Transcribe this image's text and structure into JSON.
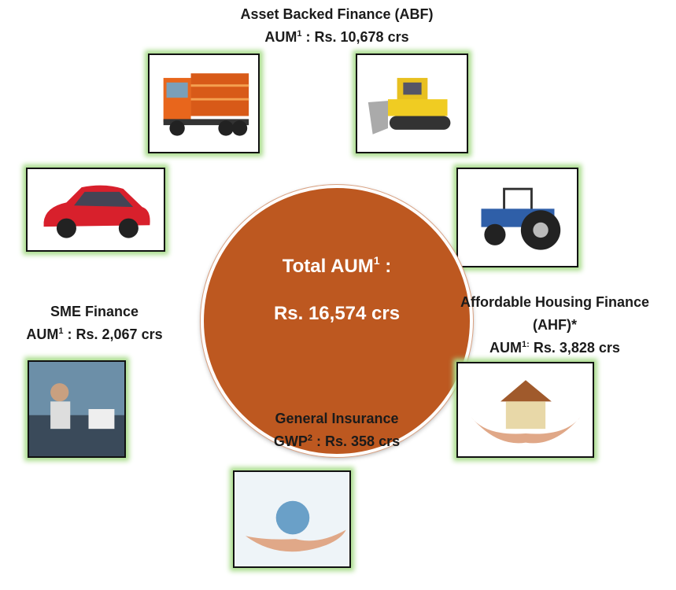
{
  "center": {
    "label": "Total AUM",
    "sup": "1",
    "after": " :",
    "value": "Rs. 16,574 crs"
  },
  "segments": [
    {
      "title": [
        "Asset Backed Finance (ABF)"
      ],
      "metric": "AUM",
      "sup": "1",
      "value": " : Rs. 10,678 crs"
    },
    {
      "title": [
        "SME Finance"
      ],
      "metric": "AUM",
      "sup": "1",
      "value": " : Rs. 2,067 crs"
    },
    {
      "title": [
        "Affordable Housing Finance",
        "(AHF)*"
      ],
      "metric": "AUM",
      "sup": "1:",
      "value": " Rs. 3,828 crs"
    },
    {
      "title": [
        "General Insurance"
      ],
      "metric": "GWP",
      "sup": "2",
      "value": " : Rs. 358 crs"
    }
  ]
}
